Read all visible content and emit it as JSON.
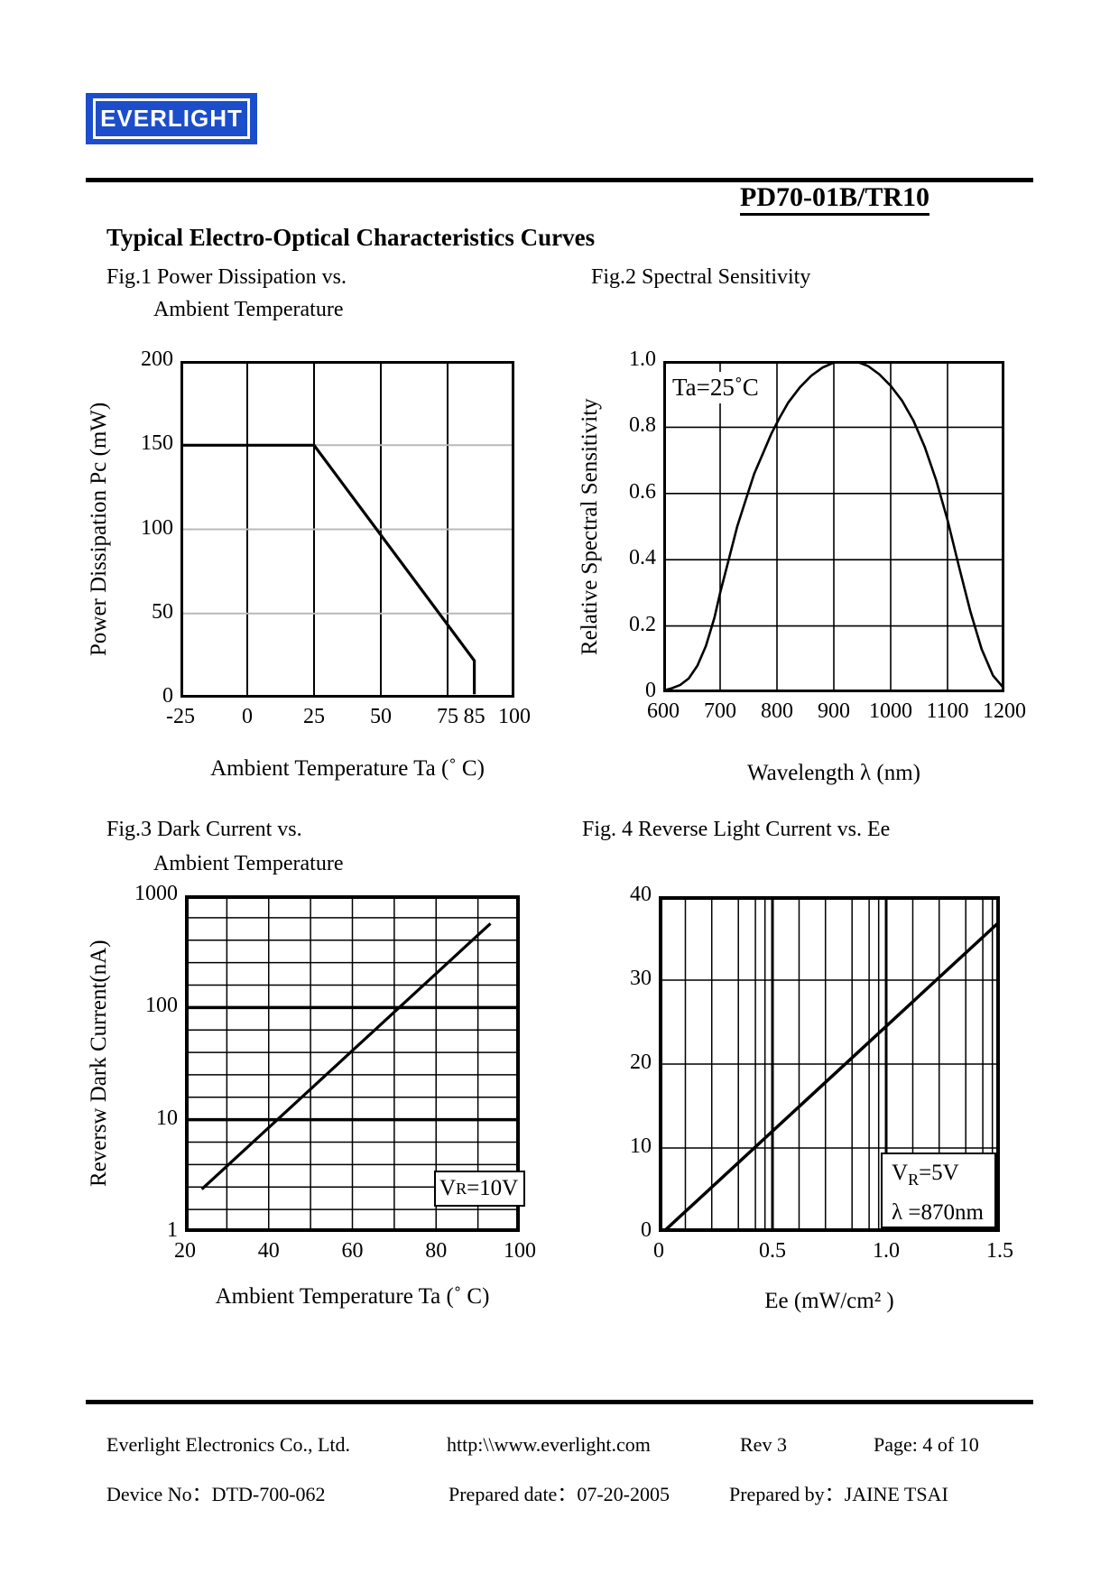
{
  "page": {
    "logo_text": "EVERLIGHT",
    "logo_color": "#1c4ecc",
    "part_number": "PD70-01B/TR10",
    "section_title": "Typical Electro-Optical Characteristics Curves"
  },
  "figures": {
    "fig1": {
      "caption_line1": "Fig.1 Power Dissipation vs.",
      "caption_line2": "Ambient Temperature"
    },
    "fig2": {
      "caption": "Fig.2 Spectral Sensitivity"
    },
    "fig3": {
      "caption_line1": "Fig.3 Dark Current vs.",
      "caption_line2": "Ambient Temperature"
    },
    "fig4": {
      "caption": "Fig. 4 Reverse Light Current vs. Ee"
    }
  },
  "footer": {
    "company": "Everlight Electronics Co., Ltd.",
    "website": "http:\\\\www.everlight.com",
    "rev": "Rev 3",
    "page": "Page: 4 of 10",
    "device_no": "Device No：DTD-700-062",
    "prepared_date": "Prepared date：07-20-2005",
    "prepared_by": "Prepared by：JAINE TSAI"
  },
  "chart_data": [
    {
      "id": "fig1",
      "type": "line",
      "title": "Fig.1 Power Dissipation vs. Ambient Temperature",
      "xlabel": "Ambient Temperature Ta (˚ C)",
      "ylabel": "Power Dissipation Pc (mW)",
      "xlim": [
        -25,
        100
      ],
      "ylim": [
        0,
        200
      ],
      "grid": "on",
      "xticks": [
        {
          "v": -25,
          "label": "-25"
        },
        {
          "v": 0,
          "label": "0"
        },
        {
          "v": 25,
          "label": "25"
        },
        {
          "v": 50,
          "label": "50"
        },
        {
          "v": 75,
          "label": "75"
        },
        {
          "v": 85,
          "label": "85"
        },
        {
          "v": 100,
          "label": "100"
        }
      ],
      "yticks": [
        {
          "v": 0,
          "label": "0"
        },
        {
          "v": 50,
          "label": "50"
        },
        {
          "v": 100,
          "label": "100"
        },
        {
          "v": 150,
          "label": "150"
        },
        {
          "v": 200,
          "label": "200"
        }
      ],
      "vgrid": [
        {
          "v": 0,
          "w": 2
        },
        {
          "v": 25,
          "w": 2
        },
        {
          "v": 50,
          "w": 2
        },
        {
          "v": 75,
          "w": 2
        }
      ],
      "hgrid": [
        {
          "v": 50,
          "w": 2,
          "color": "#b9b9b9"
        },
        {
          "v": 100,
          "w": 2,
          "color": "#b9b9b9"
        },
        {
          "v": 150,
          "w": 2,
          "color": "#b9b9b9"
        }
      ],
      "series": [
        {
          "name": "Power Dissipation Pc",
          "w": 3.2,
          "points": [
            [
              -25,
              150
            ],
            [
              25,
              150
            ],
            [
              85,
              22
            ],
            [
              85,
              2
            ]
          ]
        }
      ],
      "border_w": 3
    },
    {
      "id": "fig2",
      "type": "line",
      "title": "Fig.2 Spectral Sensitivity",
      "xlabel": "Wavelength λ (nm)",
      "ylabel": "Relative Spectral Sensitivity",
      "xlim": [
        600,
        1200
      ],
      "ylim": [
        0,
        1.0
      ],
      "grid": "on",
      "annotation": "Ta=25˚C",
      "xticks": [
        {
          "v": 600,
          "label": "600"
        },
        {
          "v": 700,
          "label": "700"
        },
        {
          "v": 800,
          "label": "800"
        },
        {
          "v": 900,
          "label": "900"
        },
        {
          "v": 1000,
          "label": "1000"
        },
        {
          "v": 1100,
          "label": "1100"
        },
        {
          "v": 1200,
          "label": "1200"
        }
      ],
      "yticks": [
        {
          "v": 0,
          "label": "0"
        },
        {
          "v": 0.2,
          "label": "0.2"
        },
        {
          "v": 0.4,
          "label": "0.4"
        },
        {
          "v": 0.6,
          "label": "0.6"
        },
        {
          "v": 0.8,
          "label": "0.8"
        },
        {
          "v": 1.0,
          "label": "1.0"
        }
      ],
      "vgrid": [
        {
          "v": 700,
          "w": 1.6
        },
        {
          "v": 800,
          "w": 1.6
        },
        {
          "v": 900,
          "w": 1.6
        },
        {
          "v": 1000,
          "w": 1.6
        },
        {
          "v": 1100,
          "w": 1.6
        }
      ],
      "hgrid": [
        {
          "v": 0.2,
          "w": 1.6
        },
        {
          "v": 0.4,
          "w": 1.6
        },
        {
          "v": 0.6,
          "w": 1.6
        },
        {
          "v": 0.8,
          "w": 1.6
        }
      ],
      "series": [
        {
          "name": "Relative Spectral Sensitivity",
          "w": 2.6,
          "points": [
            [
              600,
              0.005
            ],
            [
              615,
              0.012
            ],
            [
              630,
              0.022
            ],
            [
              645,
              0.042
            ],
            [
              660,
              0.08
            ],
            [
              675,
              0.14
            ],
            [
              690,
              0.225
            ],
            [
              700,
              0.3
            ],
            [
              715,
              0.4
            ],
            [
              730,
              0.5
            ],
            [
              745,
              0.58
            ],
            [
              760,
              0.66
            ],
            [
              775,
              0.72
            ],
            [
              790,
              0.78
            ],
            [
              805,
              0.83
            ],
            [
              820,
              0.875
            ],
            [
              840,
              0.92
            ],
            [
              860,
              0.955
            ],
            [
              880,
              0.98
            ],
            [
              900,
              0.995
            ],
            [
              920,
              1.0
            ],
            [
              940,
              0.998
            ],
            [
              960,
              0.985
            ],
            [
              980,
              0.96
            ],
            [
              1000,
              0.925
            ],
            [
              1020,
              0.88
            ],
            [
              1040,
              0.82
            ],
            [
              1060,
              0.74
            ],
            [
              1080,
              0.64
            ],
            [
              1100,
              0.52
            ],
            [
              1120,
              0.38
            ],
            [
              1140,
              0.245
            ],
            [
              1160,
              0.13
            ],
            [
              1180,
              0.05
            ],
            [
              1200,
              0.01
            ]
          ]
        }
      ],
      "border_w": 3
    },
    {
      "id": "fig3",
      "type": "line",
      "title": "Fig.3 Dark Current vs. Ambient Temperature",
      "xlabel": "Ambient Temperature Ta (˚ C)",
      "ylabel": "Reversw Dark Current(nA)",
      "xlim": [
        20,
        100
      ],
      "ylim": [
        1,
        1000
      ],
      "ylog": true,
      "grid": "on",
      "annotation": {
        "base": "V",
        "sub": "R",
        "rest": "=10V"
      },
      "xticks": [
        {
          "v": 20,
          "label": "20"
        },
        {
          "v": 40,
          "label": "40"
        },
        {
          "v": 60,
          "label": "60"
        },
        {
          "v": 80,
          "label": "80"
        },
        {
          "v": 100,
          "label": "100"
        }
      ],
      "yticks": [
        {
          "v": 1,
          "label": "1"
        },
        {
          "v": 10,
          "label": "10"
        },
        {
          "v": 100,
          "label": "100"
        },
        {
          "v": 1000,
          "label": "1000"
        }
      ],
      "vgrid": [
        {
          "v": 30,
          "w": 1.5
        },
        {
          "v": 40,
          "w": 1.5
        },
        {
          "v": 50,
          "w": 1.5
        },
        {
          "v": 60,
          "w": 1.5
        },
        {
          "v": 70,
          "w": 1.5
        },
        {
          "v": 80,
          "w": 1.5
        },
        {
          "v": 90,
          "w": 1.5
        }
      ],
      "hgrid": [
        {
          "v": 10,
          "w": 3.5
        },
        {
          "v": 100,
          "w": 3.5
        },
        {
          "v": 1.585,
          "w": 1.5
        },
        {
          "v": 2.512,
          "w": 1.5
        },
        {
          "v": 3.981,
          "w": 1.5
        },
        {
          "v": 6.31,
          "w": 1.5
        },
        {
          "v": 15.85,
          "w": 1.5
        },
        {
          "v": 25.12,
          "w": 1.5
        },
        {
          "v": 39.81,
          "w": 1.5
        },
        {
          "v": 63.1,
          "w": 1.5
        },
        {
          "v": 158.5,
          "w": 1.5
        },
        {
          "v": 251.2,
          "w": 1.5
        },
        {
          "v": 398.1,
          "w": 1.5
        },
        {
          "v": 631,
          "w": 1.5
        }
      ],
      "series": [
        {
          "name": "Reverse Dark Current",
          "w": 3.2,
          "points": [
            [
              24,
              2.4
            ],
            [
              93,
              560
            ]
          ]
        }
      ],
      "border_w": 4
    },
    {
      "id": "fig4",
      "type": "line",
      "title": "Fig. 4 Reverse Light Current vs. Ee",
      "xlabel": "Ee  (mW/cm² )",
      "ylabel": "",
      "xlim": [
        0,
        1.5
      ],
      "ylim": [
        0,
        40
      ],
      "grid": "on",
      "vr": {
        "base": "V",
        "sub": "R",
        "rest": "=5V"
      },
      "lambda": "λ =870nm",
      "xticks": [
        {
          "v": 0,
          "label": "0"
        },
        {
          "v": 0.5,
          "label": "0.5"
        },
        {
          "v": 1.0,
          "label": "1.0"
        },
        {
          "v": 1.5,
          "label": "1.5"
        }
      ],
      "yticks": [
        {
          "v": 0,
          "label": "0"
        },
        {
          "v": 10,
          "label": "10"
        },
        {
          "v": 20,
          "label": "20"
        },
        {
          "v": 30,
          "label": "30"
        },
        {
          "v": 40,
          "label": "40"
        }
      ],
      "vgrid": [
        {
          "v": 0.5,
          "w": 3
        },
        {
          "v": 1.0,
          "w": 3
        },
        {
          "v": 0.117,
          "w": 1.5
        },
        {
          "v": 0.233,
          "w": 1.5
        },
        {
          "v": 0.35,
          "w": 1.5
        },
        {
          "v": 0.425,
          "w": 1.5
        },
        {
          "v": 0.467,
          "w": 1.5
        },
        {
          "v": 0.617,
          "w": 1.5
        },
        {
          "v": 0.733,
          "w": 1.5
        },
        {
          "v": 0.85,
          "w": 1.5
        },
        {
          "v": 0.925,
          "w": 1.5
        },
        {
          "v": 0.967,
          "w": 1.5
        },
        {
          "v": 1.117,
          "w": 1.5
        },
        {
          "v": 1.233,
          "w": 1.5
        },
        {
          "v": 1.35,
          "w": 1.5
        },
        {
          "v": 1.425,
          "w": 1.5
        },
        {
          "v": 1.467,
          "w": 1.5
        }
      ],
      "hgrid": [
        {
          "v": 10,
          "w": 1.5
        },
        {
          "v": 20,
          "w": 1.5
        },
        {
          "v": 30,
          "w": 1.5
        }
      ],
      "series": [
        {
          "name": "Reverse Light Current",
          "w": 3.5,
          "points": [
            [
              0.02,
              0
            ],
            [
              1.5,
              37
            ]
          ]
        }
      ],
      "border_w": 4
    }
  ]
}
